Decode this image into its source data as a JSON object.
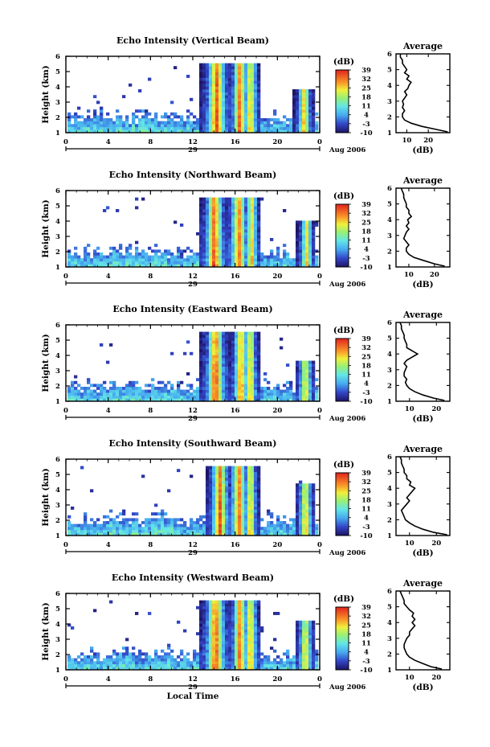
{
  "chart_data": [
    {
      "type": "heatmap",
      "title": "Echo Intensity (Vertical Beam)",
      "ylabel": "Height (km)",
      "xlabel": "",
      "date_label": "Aug 2006",
      "day_label": "29",
      "x_ticks": [
        "0",
        "4",
        "8",
        "12",
        "16",
        "20",
        "0"
      ],
      "y_ticks": [
        "1",
        "2",
        "3",
        "4",
        "5",
        "6"
      ],
      "xlim": [
        0,
        24
      ],
      "ylim": [
        1,
        6
      ],
      "colorbar": {
        "unit": "(dB)",
        "ticks": [
          "39",
          "32",
          "25",
          "18",
          "11",
          "4",
          "-3",
          "-10"
        ],
        "range": [
          -10,
          39
        ]
      },
      "average": {
        "title": "Average",
        "xlabel": "(dB)",
        "x_ticks": [
          "10",
          "20"
        ],
        "xlim": [
          5,
          30
        ],
        "profile": {
          "height": [
            1.05,
            1.2,
            1.4,
            1.6,
            1.8,
            2.0,
            2.2,
            2.4,
            2.6,
            2.8,
            3.0,
            3.2,
            3.4,
            3.6,
            3.8,
            4.0,
            4.2,
            4.4,
            4.6,
            4.8,
            5.0,
            5.2,
            5.4,
            5.6,
            5.8,
            6.0
          ],
          "db": [
            29,
            24,
            17,
            12,
            9,
            8,
            8,
            9,
            8,
            8.5,
            8,
            9,
            10,
            9,
            10.5,
            11,
            12,
            10,
            11,
            9,
            10,
            9,
            8,
            8,
            7,
            7
          ]
        }
      },
      "storms": [
        {
          "center": 14.1,
          "width": 1.5,
          "top": 5.6,
          "peak": 39
        },
        {
          "center": 16.3,
          "width": 1.2,
          "top": 5.6,
          "peak": 37
        },
        {
          "center": 17.3,
          "width": 1.0,
          "top": 5.6,
          "peak": 33
        },
        {
          "center": 22.4,
          "width": 1.0,
          "top": 4.0,
          "peak": 32
        }
      ]
    },
    {
      "type": "heatmap",
      "title": "Echo Intensity (Northward Beam)",
      "ylabel": "Height (km)",
      "xlabel": "",
      "date_label": "Aug 2006",
      "day_label": "29",
      "x_ticks": [
        "0",
        "4",
        "8",
        "12",
        "16",
        "20",
        "0"
      ],
      "y_ticks": [
        "1",
        "2",
        "3",
        "4",
        "5",
        "6"
      ],
      "xlim": [
        0,
        24
      ],
      "ylim": [
        1,
        6
      ],
      "colorbar": {
        "unit": "(dB)",
        "ticks": [
          "39",
          "32",
          "25",
          "18",
          "11",
          "4",
          "-3",
          "-10"
        ],
        "range": [
          -10,
          39
        ]
      },
      "average": {
        "title": "Average",
        "xlabel": "(dB)",
        "x_ticks": [
          "10",
          "20"
        ],
        "xlim": [
          5,
          26
        ],
        "profile": {
          "height": [
            1.05,
            1.2,
            1.4,
            1.6,
            1.8,
            2.0,
            2.2,
            2.4,
            2.6,
            2.8,
            3.0,
            3.2,
            3.4,
            3.6,
            3.8,
            4.0,
            4.2,
            4.4,
            4.6,
            4.8,
            5.0,
            5.2,
            5.4,
            5.6,
            5.8,
            6.0
          ],
          "db": [
            24,
            20,
            16,
            12,
            10,
            9,
            9,
            10,
            9,
            8,
            8.5,
            9,
            10,
            9,
            10,
            9.5,
            11,
            10,
            10,
            9,
            9,
            8.5,
            8,
            8,
            7.5,
            7
          ]
        }
      },
      "storms": [
        {
          "center": 13.9,
          "width": 1.4,
          "top": 5.6,
          "peak": 39
        },
        {
          "center": 16.2,
          "width": 1.3,
          "top": 5.6,
          "peak": 36
        },
        {
          "center": 17.4,
          "width": 0.9,
          "top": 5.6,
          "peak": 32
        },
        {
          "center": 22.6,
          "width": 0.9,
          "top": 4.2,
          "peak": 30
        }
      ]
    },
    {
      "type": "heatmap",
      "title": "Echo Intensity (Eastward Beam)",
      "ylabel": "Height (km)",
      "xlabel": "",
      "date_label": "Aug 2006",
      "day_label": "29",
      "x_ticks": [
        "0",
        "4",
        "8",
        "12",
        "16",
        "20",
        "0"
      ],
      "y_ticks": [
        "1",
        "2",
        "3",
        "4",
        "5",
        "6"
      ],
      "xlim": [
        0,
        24
      ],
      "ylim": [
        1,
        6
      ],
      "colorbar": {
        "unit": "(dB)",
        "ticks": [
          "39",
          "32",
          "25",
          "18",
          "11",
          "4",
          "-3",
          "-10"
        ],
        "range": [
          -10,
          39
        ]
      },
      "average": {
        "title": "Average",
        "xlabel": "(dB)",
        "x_ticks": [
          "10",
          "20"
        ],
        "xlim": [
          5,
          25
        ],
        "profile": {
          "height": [
            1.05,
            1.2,
            1.4,
            1.6,
            1.8,
            2.0,
            2.2,
            2.4,
            2.6,
            2.8,
            3.0,
            3.2,
            3.4,
            3.6,
            3.8,
            4.0,
            4.2,
            4.4,
            4.6,
            4.8,
            5.0,
            5.2,
            5.4,
            5.6,
            5.8,
            6.0
          ],
          "db": [
            23,
            19,
            15,
            12,
            10,
            9,
            8.5,
            9,
            8,
            8,
            8.5,
            9,
            8,
            9,
            11,
            13,
            11,
            9,
            9,
            8.5,
            8,
            8,
            7.5,
            7,
            7,
            6.5
          ]
        }
      },
      "storms": [
        {
          "center": 14.0,
          "width": 1.4,
          "top": 5.6,
          "peak": 39
        },
        {
          "center": 16.4,
          "width": 1.1,
          "top": 5.6,
          "peak": 36
        },
        {
          "center": 17.3,
          "width": 0.9,
          "top": 5.6,
          "peak": 33
        },
        {
          "center": 22.5,
          "width": 1.0,
          "top": 3.8,
          "peak": 31
        }
      ]
    },
    {
      "type": "heatmap",
      "title": "Echo Intensity (Southward Beam)",
      "ylabel": "Height (km)",
      "xlabel": "",
      "date_label": "Aug 2006",
      "day_label": "29",
      "x_ticks": [
        "0",
        "4",
        "8",
        "12",
        "16",
        "20",
        "0"
      ],
      "y_ticks": [
        "1",
        "2",
        "3",
        "4",
        "5",
        "6"
      ],
      "xlim": [
        0,
        24
      ],
      "ylim": [
        1,
        6
      ],
      "colorbar": {
        "unit": "(dB)",
        "ticks": [
          "39",
          "32",
          "25",
          "18",
          "11",
          "4",
          "-3",
          "-10"
        ],
        "range": [
          -10,
          39
        ]
      },
      "average": {
        "title": "Average",
        "xlabel": "(dB)",
        "x_ticks": [
          "10",
          "20"
        ],
        "xlim": [
          5,
          25
        ],
        "profile": {
          "height": [
            1.05,
            1.2,
            1.4,
            1.6,
            1.8,
            2.0,
            2.2,
            2.4,
            2.6,
            2.8,
            3.0,
            3.2,
            3.4,
            3.6,
            3.8,
            4.0,
            4.2,
            4.4,
            4.6,
            4.8,
            5.0,
            5.2,
            5.4,
            5.6,
            5.8,
            6.0
          ],
          "db": [
            24,
            19,
            15,
            12,
            10,
            8.5,
            8,
            7.5,
            7,
            8,
            9,
            10,
            9,
            10,
            11,
            12,
            10,
            10.5,
            9,
            9,
            8,
            8,
            7.5,
            7,
            7,
            6.5
          ]
        }
      },
      "storms": [
        {
          "center": 14.4,
          "width": 1.3,
          "top": 5.6,
          "peak": 38
        },
        {
          "center": 16.2,
          "width": 1.2,
          "top": 5.6,
          "peak": 37
        },
        {
          "center": 17.3,
          "width": 0.9,
          "top": 5.6,
          "peak": 33
        },
        {
          "center": 22.5,
          "width": 1.0,
          "top": 4.6,
          "peak": 32
        }
      ]
    },
    {
      "type": "heatmap",
      "title": "Echo Intensity (Westward Beam)",
      "ylabel": "Height (km)",
      "xlabel": "Local Time",
      "date_label": "Aug 2006",
      "day_label": "29",
      "x_ticks": [
        "0",
        "4",
        "8",
        "12",
        "16",
        "20",
        "0"
      ],
      "y_ticks": [
        "1",
        "2",
        "3",
        "4",
        "5",
        "6"
      ],
      "xlim": [
        0,
        24
      ],
      "ylim": [
        1,
        6
      ],
      "colorbar": {
        "unit": "(dB)",
        "ticks": [
          "39",
          "32",
          "25",
          "18",
          "11",
          "4",
          "-3",
          "-10"
        ],
        "range": [
          -10,
          39
        ]
      },
      "average": {
        "title": "Average",
        "xlabel": "(dB)",
        "x_ticks": [
          "10",
          "20"
        ],
        "xlim": [
          5,
          25
        ],
        "profile": {
          "height": [
            1.05,
            1.2,
            1.4,
            1.6,
            1.8,
            2.0,
            2.2,
            2.4,
            2.6,
            2.8,
            3.0,
            3.2,
            3.4,
            3.6,
            3.8,
            4.0,
            4.2,
            4.4,
            4.6,
            4.8,
            5.0,
            5.2,
            5.4,
            5.6,
            5.8,
            6.0
          ],
          "db": [
            22,
            18,
            15,
            12,
            10,
            9,
            8.5,
            8,
            8,
            8.5,
            9,
            10,
            10,
            11,
            12,
            11,
            12,
            11,
            11.5,
            10,
            9,
            8,
            8,
            7.5,
            7,
            6.5
          ]
        }
      },
      "storms": [
        {
          "center": 14.0,
          "width": 1.5,
          "top": 5.6,
          "peak": 39
        },
        {
          "center": 16.3,
          "width": 1.2,
          "top": 5.6,
          "peak": 36
        },
        {
          "center": 17.3,
          "width": 1.0,
          "top": 5.6,
          "peak": 33
        },
        {
          "center": 22.5,
          "width": 1.0,
          "top": 4.3,
          "peak": 31
        }
      ]
    }
  ]
}
